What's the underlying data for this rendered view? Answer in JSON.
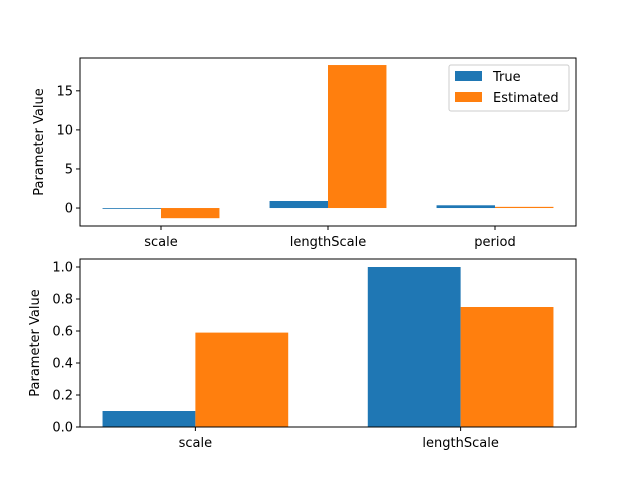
{
  "colors": {
    "true": "#1f77b4",
    "estimated": "#ff7f0e",
    "axis": "#000000"
  },
  "chart_data": [
    {
      "type": "bar",
      "categories": [
        "scale",
        "lengthScale",
        "period"
      ],
      "series": [
        {
          "name": "True",
          "values": [
            0.0,
            0.9,
            0.35
          ]
        },
        {
          "name": "Estimated",
          "values": [
            -1.3,
            18.3,
            0.15
          ]
        }
      ],
      "xlabel": "",
      "ylabel": "Parameter Value",
      "ylim": [
        -2.3,
        19.2
      ],
      "yticks": [
        0,
        5,
        10,
        15
      ],
      "legend": "top-right",
      "grid": false
    },
    {
      "type": "bar",
      "categories": [
        "scale",
        "lengthScale"
      ],
      "series": [
        {
          "name": "True",
          "values": [
            0.1,
            1.0
          ]
        },
        {
          "name": "Estimated",
          "values": [
            0.59,
            0.75
          ]
        }
      ],
      "xlabel": "",
      "ylabel": "Parameter Value",
      "ylim": [
        0.0,
        1.05
      ],
      "yticks": [
        0.0,
        0.2,
        0.4,
        0.6,
        0.8,
        1.0
      ],
      "legend": "none",
      "grid": false
    }
  ]
}
